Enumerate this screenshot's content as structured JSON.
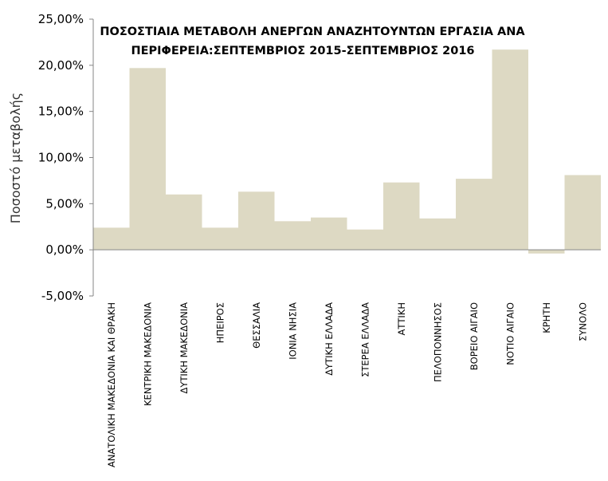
{
  "chart_data": {
    "type": "bar",
    "title_lines": [
      "ΠΟΣΟΣΤΙΑΙΑ ΜΕΤΑΒΟΛΗ ΑΝΕΡΓΩΝ ΑΝΑΖΗΤΟΥΝΤΩΝ ΕΡΓΑΣΙΑ ΑΝΑ",
      "ΠΕΡΙΦΕΡΕΙΑ:ΣΕΠΤΕΜΒΡΙΟΣ 2015-ΣΕΠΤΕΜΒΡΙΟΣ 2016"
    ],
    "ylabel": "Ποσοστό μεταβολής",
    "categories": [
      "ΑΝΑΤΟΛΙΚΗ ΜΑΚΕΔΟΝΙΑ ΚΑΙ ΘΡΑΚΗ",
      "ΚΕΝΤΡΙΚΗ ΜΑΚΕΔΟΝΙΑ",
      "ΔΥΤΙΚΗ ΜΑΚΕΔΟΝΙΑ",
      "ΗΠΕΙΡΟΣ",
      "ΘΕΣΣΑΛΙΑ",
      "ΙΟΝΙΑ ΝΗΣΙΑ",
      "ΔΥΤΙΚΗ ΕΛΛΑΔΑ",
      "ΣΤΕΡΕΑ ΕΛΛΑΔΑ",
      "ΑΤΤΙΚΗ",
      "ΠΕΛΟΠΟΝΝΗΣΟΣ",
      "ΒΟΡΕΙΟ ΑΙΓΑΙΟ",
      "ΝΟΤΙΟ ΑΙΓΑΙΟ",
      "ΚΡΗΤΗ",
      "ΣΥΝΟΛΟ"
    ],
    "values": [
      2.4,
      19.7,
      6.0,
      2.4,
      6.3,
      3.1,
      3.5,
      2.2,
      7.3,
      3.4,
      7.7,
      21.7,
      -0.4,
      8.1
    ],
    "ylim": [
      -5,
      25
    ],
    "yticks": [
      -5,
      0,
      5,
      10,
      15,
      20,
      25
    ],
    "ytick_labels": [
      "-5,00%",
      "0,00%",
      "5,00%",
      "10,00%",
      "15,00%",
      "20,00%",
      "25,00%"
    ],
    "grid": false,
    "legend": "none",
    "bar_color": "#ddd9c3"
  }
}
